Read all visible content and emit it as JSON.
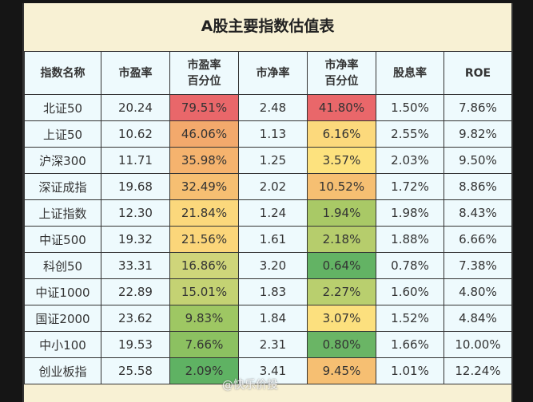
{
  "title": "A股主要指数估值表",
  "headers": [
    "指数名称",
    "市盈率",
    "市盈率\n百分位",
    "市净率",
    "市净率\n百分位",
    "股息率",
    "ROE"
  ],
  "rows": [
    [
      "北证50",
      "20.24",
      "79.51%",
      "2.48",
      "41.80%",
      "1.50%",
      "7.86%"
    ],
    [
      "上证50",
      "10.62",
      "46.06%",
      "1.13",
      "6.16%",
      "2.55%",
      "9.82%"
    ],
    [
      "沪深300",
      "11.71",
      "35.98%",
      "1.25",
      "3.57%",
      "2.03%",
      "9.50%"
    ],
    [
      "深证成指",
      "19.68",
      "32.49%",
      "2.02",
      "10.52%",
      "1.72%",
      "8.86%"
    ],
    [
      "上证指数",
      "12.30",
      "21.84%",
      "1.24",
      "1.94%",
      "1.98%",
      "8.43%"
    ],
    [
      "中证500",
      "19.32",
      "21.56%",
      "1.61",
      "2.18%",
      "1.88%",
      "6.66%"
    ],
    [
      "科创50",
      "33.31",
      "16.86%",
      "3.20",
      "0.64%",
      "0.78%",
      "7.38%"
    ],
    [
      "中证1000",
      "22.89",
      "15.01%",
      "1.83",
      "2.27%",
      "1.60%",
      "4.80%"
    ],
    [
      "国证2000",
      "23.62",
      "9.83%",
      "1.84",
      "3.07%",
      "1.52%",
      "4.84%"
    ],
    [
      "中小100",
      "19.53",
      "7.66%",
      "2.31",
      "0.80%",
      "1.66%",
      "10.00%"
    ],
    [
      "创业板指",
      "25.58",
      "2.09%",
      "3.41",
      "9.45%",
      "1.01%",
      "12.24%"
    ]
  ],
  "pe_pct_colors": [
    "#e9676a",
    "#f3a96c",
    "#f5b36e",
    "#f6bf72",
    "#fbd87c",
    "#fbd67a",
    "#cfd57a",
    "#c4d273",
    "#9ec763",
    "#8cc161",
    "#5fb263"
  ],
  "pb_pct_colors": [
    "#e9676a",
    "#fcd97c",
    "#fde27e",
    "#f6bf72",
    "#a9c966",
    "#b6cd6c",
    "#63b364",
    "#b9cf6e",
    "#fce07e",
    "#6ab565",
    "#f6bf72"
  ],
  "watermark": "@快乐价投"
}
